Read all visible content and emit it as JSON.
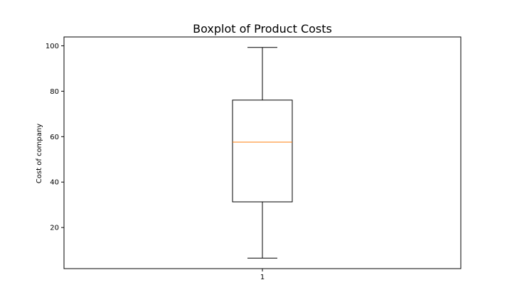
{
  "chart_data": {
    "type": "box",
    "title": "Boxplot of Product Costs",
    "xlabel": "",
    "ylabel": "Cost of company",
    "categories": [
      "1"
    ],
    "boxes": [
      {
        "category": "1",
        "whisker_low": 6.5,
        "q1": 31.3,
        "median": 57.6,
        "q3": 76.1,
        "whisker_high": 99.3
      }
    ],
    "ylim": [
      1.9,
      103.9
    ],
    "yticks": [
      20,
      40,
      60,
      80,
      100
    ],
    "ytick_labels": [
      "20",
      "40",
      "60",
      "80",
      "100"
    ],
    "grid": false,
    "colors": {
      "median": "#ff7f0e",
      "box": "#000000",
      "axes": "#000000"
    }
  }
}
